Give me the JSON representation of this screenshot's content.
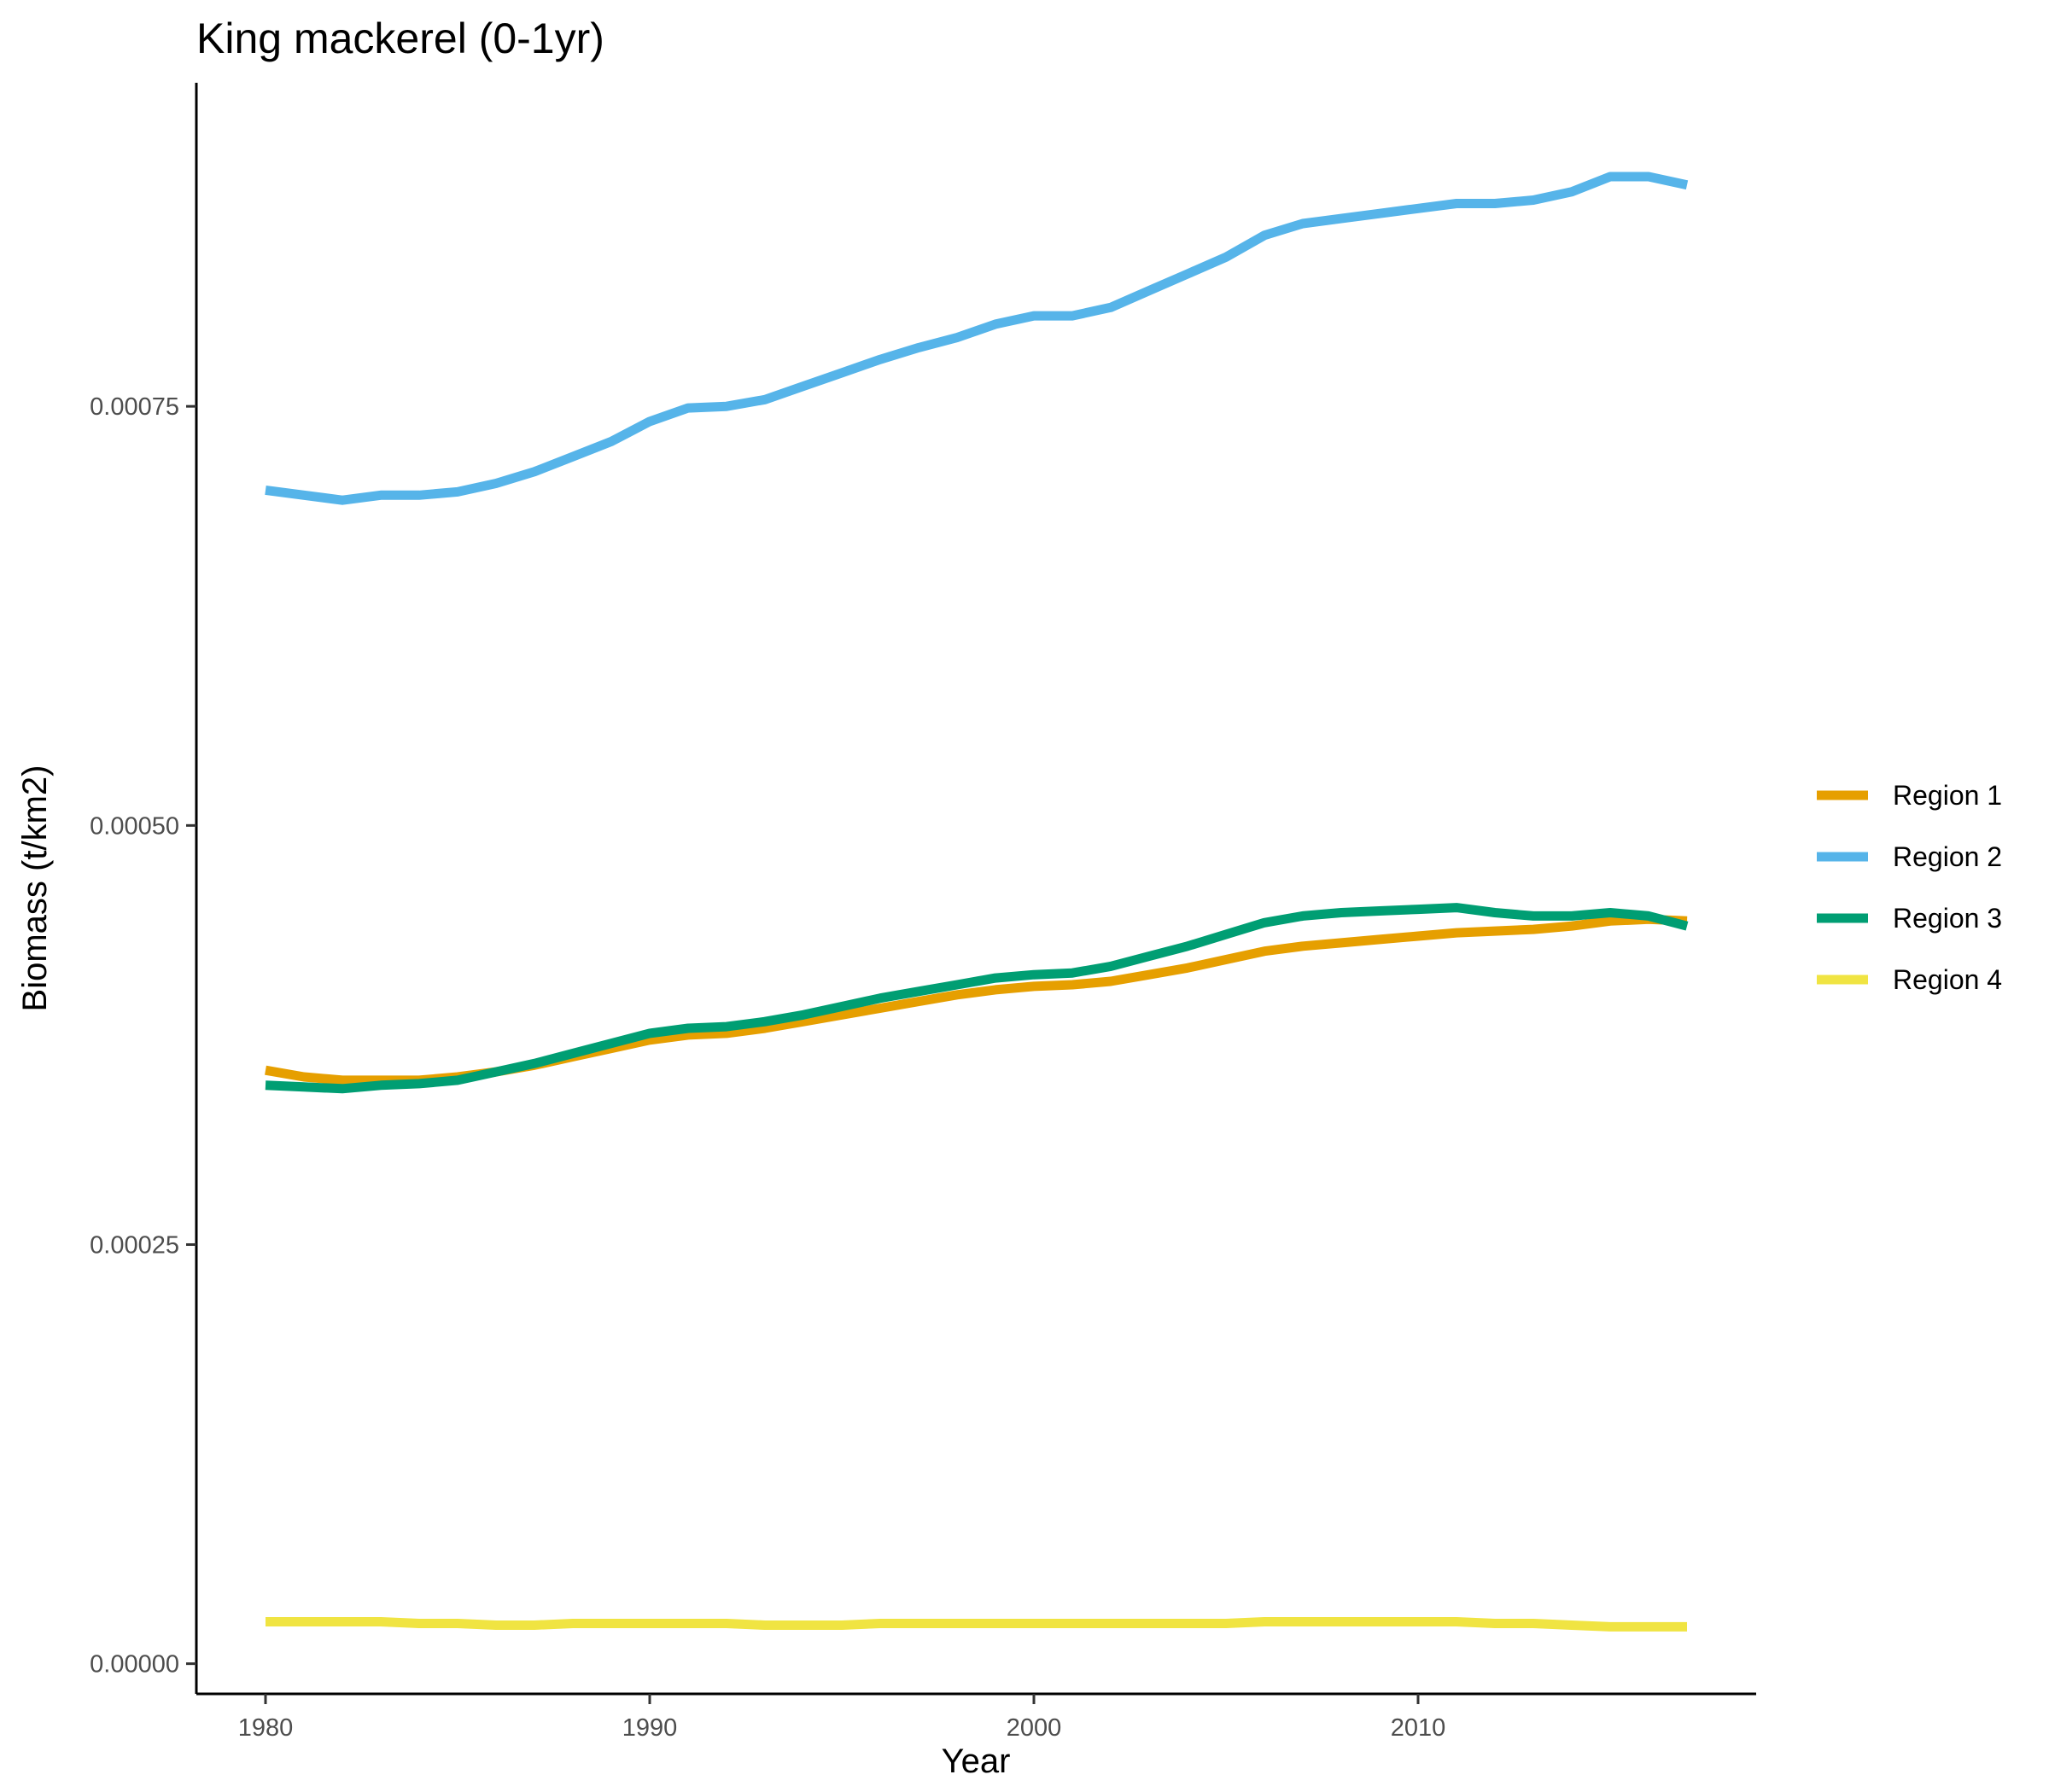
{
  "chart_data": {
    "type": "line",
    "title": "King mackerel (0-1yr)",
    "xlabel": "Year",
    "ylabel": "Biomass (t/km2)",
    "xlim": [
      1978.2,
      2018.8
    ],
    "ylim": [
      -1.8e-05,
      0.000943
    ],
    "x_ticks": [
      1980,
      1990,
      2000,
      2010
    ],
    "y_ticks": [
      0.0,
      0.00025,
      0.0005,
      0.00075
    ],
    "y_tick_labels": [
      "0.00000",
      "0.00025",
      "0.00050",
      "0.00075"
    ],
    "grid": false,
    "legend_position": "right",
    "x": [
      1980,
      1981,
      1982,
      1983,
      1984,
      1985,
      1986,
      1987,
      1988,
      1989,
      1990,
      1991,
      1992,
      1993,
      1994,
      1995,
      1996,
      1997,
      1998,
      1999,
      2000,
      2001,
      2002,
      2003,
      2004,
      2005,
      2006,
      2007,
      2008,
      2009,
      2010,
      2011,
      2012,
      2013,
      2014,
      2015,
      2016,
      2017
    ],
    "series": [
      {
        "name": "Region 1",
        "color": "#E69F00",
        "values": [
          0.000354,
          0.00035,
          0.000348,
          0.000348,
          0.000348,
          0.00035,
          0.000353,
          0.000357,
          0.000362,
          0.000367,
          0.000372,
          0.000375,
          0.000376,
          0.000379,
          0.000383,
          0.000387,
          0.000391,
          0.000395,
          0.000399,
          0.000402,
          0.000404,
          0.000405,
          0.000407,
          0.000411,
          0.000415,
          0.00042,
          0.000425,
          0.000428,
          0.00043,
          0.000432,
          0.000434,
          0.000436,
          0.000437,
          0.000438,
          0.00044,
          0.000443,
          0.000444,
          0.000443
        ]
      },
      {
        "name": "Region 2",
        "color": "#56B4E9",
        "values": [
          0.0007,
          0.000697,
          0.000694,
          0.000697,
          0.000697,
          0.000699,
          0.000704,
          0.000711,
          0.00072,
          0.000729,
          0.000741,
          0.000749,
          0.00075,
          0.000754,
          0.000762,
          0.00077,
          0.000778,
          0.000785,
          0.000791,
          0.000799,
          0.000804,
          0.000804,
          0.000809,
          0.000819,
          0.000829,
          0.000839,
          0.000852,
          0.000859,
          0.000862,
          0.000865,
          0.000868,
          0.000871,
          0.000871,
          0.000873,
          0.000878,
          0.000887,
          0.000887,
          0.000882
        ]
      },
      {
        "name": "Region 3",
        "color": "#009E73",
        "values": [
          0.000345,
          0.000344,
          0.000343,
          0.000345,
          0.000346,
          0.000348,
          0.000353,
          0.000358,
          0.000364,
          0.00037,
          0.000376,
          0.000379,
          0.00038,
          0.000383,
          0.000387,
          0.000392,
          0.000397,
          0.000401,
          0.000405,
          0.000409,
          0.000411,
          0.000412,
          0.000416,
          0.000422,
          0.000428,
          0.000435,
          0.000442,
          0.000446,
          0.000448,
          0.000449,
          0.00045,
          0.000451,
          0.000448,
          0.000446,
          0.000446,
          0.000448,
          0.000446,
          0.00044
        ]
      },
      {
        "name": "Region 4",
        "color": "#F0E442",
        "values": [
          2.5e-05,
          2.5e-05,
          2.5e-05,
          2.5e-05,
          2.4e-05,
          2.4e-05,
          2.3e-05,
          2.3e-05,
          2.4e-05,
          2.4e-05,
          2.4e-05,
          2.4e-05,
          2.4e-05,
          2.3e-05,
          2.3e-05,
          2.3e-05,
          2.4e-05,
          2.4e-05,
          2.4e-05,
          2.4e-05,
          2.4e-05,
          2.4e-05,
          2.4e-05,
          2.4e-05,
          2.4e-05,
          2.4e-05,
          2.5e-05,
          2.5e-05,
          2.5e-05,
          2.5e-05,
          2.5e-05,
          2.5e-05,
          2.4e-05,
          2.4e-05,
          2.3e-05,
          2.2e-05,
          2.2e-05,
          2.2e-05
        ]
      }
    ]
  }
}
